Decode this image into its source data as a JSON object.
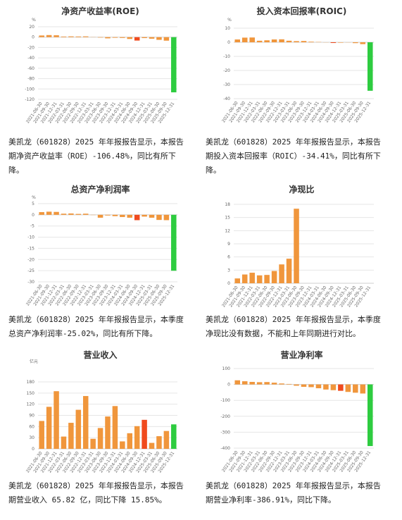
{
  "colors": {
    "orange": "#f0963c",
    "red": "#f04a1e",
    "green": "#2ecc40"
  },
  "captions": [
    "美凯龙（601828）2025 年年报报告显示，本报告\n期净资产收益率（ROE）-106.48%，同比有所下\n降。",
    "美凯龙（601828）2025 年年报报告显示，本报告\n期投入资本回报率（ROIC）-34.41%，同比有所下\n降。",
    "美凯龙（601828）2025 年年报报告显示，本季度\n总资产净利润率-25.02%，同比有所下降。",
    "美凯龙（601828）2025 年年报报告显示，本季度\n净现比没有数据，不能和上年同期进行对比。",
    "美凯龙（601828）2025 年年报报告显示，本报告\n期营业收入 65.82 亿，同比下降 15.85%。",
    "美凯龙（601828）2025 年年报报告显示，本报告\n期营业净利率-386.91%，同比下降。"
  ],
  "chart_data": [
    {
      "type": "bar",
      "title": "净资产收益率(ROE)",
      "unit": "%",
      "ylim": [
        -120,
        20
      ],
      "yticks": [
        20,
        0,
        -20,
        -40,
        -60,
        -80,
        -100,
        -120
      ],
      "categories": [
        "2021-06-30",
        "2021-09-30",
        "2021-12-31",
        "2022-03-31",
        "2022-06-30",
        "2022-09-30",
        "2022-12-31",
        "2023-03-31",
        "2023-06-30",
        "2023-09-30",
        "2023-12-31",
        "2024-03-31",
        "2024-06-30",
        "2024-09-30",
        "2024-12-31",
        "2025-03-31",
        "2025-06-30",
        "2025-09-30",
        "2025-12-31"
      ],
      "values": [
        3.2,
        4.0,
        3.6,
        1.2,
        1.5,
        1.3,
        1.5,
        0.3,
        -0.8,
        -2.3,
        -1.2,
        -1.5,
        -3.5,
        -6.6,
        -1.8,
        -3.0,
        -5.2,
        -6.8,
        -106.48
      ],
      "colors": [
        "orange",
        "orange",
        "orange",
        "orange",
        "orange",
        "orange",
        "orange",
        "orange",
        "orange",
        "orange",
        "orange",
        "orange",
        "orange",
        "red",
        "orange",
        "orange",
        "orange",
        "orange",
        "green"
      ]
    },
    {
      "type": "bar",
      "title": "投入资本回报率(ROIC)",
      "unit": "%",
      "ylim": [
        -40,
        10
      ],
      "yticks": [
        10,
        0,
        -10,
        -20,
        -30,
        -40
      ],
      "categories": [
        "2021-06-30",
        "2021-09-30",
        "2021-12-31",
        "2022-03-31",
        "2022-06-30",
        "2022-09-30",
        "2022-12-31",
        "2023-03-31",
        "2023-06-30",
        "2023-09-30",
        "2023-12-31",
        "2024-03-31",
        "2024-06-30",
        "2024-09-30",
        "2024-12-31",
        "2025-03-31",
        "2025-06-30",
        "2025-09-30",
        "2025-12-31"
      ],
      "values": [
        2.0,
        3.3,
        3.4,
        1.1,
        1.4,
        2.0,
        2.1,
        1.1,
        0.8,
        0.9,
        0.4,
        0.2,
        -0.1,
        -0.5,
        -0.3,
        -0.1,
        -0.6,
        -1.3,
        -34.41
      ],
      "colors": [
        "orange",
        "orange",
        "orange",
        "orange",
        "orange",
        "orange",
        "orange",
        "orange",
        "orange",
        "orange",
        "orange",
        "orange",
        "orange",
        "red",
        "orange",
        "orange",
        "orange",
        "orange",
        "green"
      ]
    },
    {
      "type": "bar",
      "title": "总资产净利润率",
      "unit": "%",
      "ylim": [
        -30,
        5
      ],
      "yticks": [
        5,
        0,
        -5,
        -10,
        -15,
        -20,
        -25,
        -30
      ],
      "categories": [
        "2021-06-30",
        "2021-09-30",
        "2021-12-31",
        "2022-03-31",
        "2022-06-30",
        "2022-09-30",
        "2022-12-31",
        "2023-03-31",
        "2023-06-30",
        "2023-09-30",
        "2023-12-31",
        "2024-03-31",
        "2024-06-30",
        "2024-09-30",
        "2024-12-31",
        "2025-03-31",
        "2025-06-30",
        "2025-09-30",
        "2025-12-31"
      ],
      "values": [
        1.2,
        1.4,
        1.3,
        0.5,
        0.6,
        0.4,
        0.5,
        -0.1,
        -1.3,
        -0.3,
        -0.6,
        -1.0,
        -1.3,
        -2.4,
        -0.8,
        -1.3,
        -2.3,
        -2.4,
        -25.02
      ],
      "colors": [
        "orange",
        "orange",
        "orange",
        "orange",
        "orange",
        "orange",
        "orange",
        "orange",
        "orange",
        "orange",
        "orange",
        "orange",
        "orange",
        "red",
        "orange",
        "orange",
        "orange",
        "orange",
        "green"
      ]
    },
    {
      "type": "bar",
      "title": "净现比",
      "unit": "",
      "ylim": [
        0,
        18
      ],
      "yticks": [
        18,
        15,
        12,
        9,
        6,
        3,
        0
      ],
      "categories": [
        "2021-06-30",
        "2021-09-30",
        "2021-12-31",
        "2022-03-31",
        "2022-06-30",
        "2022-09-30",
        "2022-12-31",
        "2023-03-31",
        "2023-06-30",
        "2023-09-30",
        "2023-12-31",
        "2024-03-31",
        "2024-06-30",
        "2024-09-30",
        "2024-12-31",
        "2025-03-31",
        "2025-06-30",
        "2025-09-30",
        "2025-12-31"
      ],
      "values": [
        1.1,
        2.0,
        2.4,
        1.8,
        1.9,
        2.8,
        4.3,
        5.6,
        17.0,
        0,
        0,
        0,
        0,
        0,
        0,
        0,
        0,
        0,
        0
      ],
      "colors": [
        "orange",
        "orange",
        "orange",
        "orange",
        "orange",
        "orange",
        "orange",
        "orange",
        "orange",
        "orange",
        "orange",
        "orange",
        "orange",
        "orange",
        "orange",
        "orange",
        "orange",
        "orange",
        "orange"
      ]
    },
    {
      "type": "bar",
      "title": "营业收入",
      "unit": "亿元",
      "ylim": [
        0,
        180
      ],
      "yticks": [
        180,
        150,
        120,
        90,
        60,
        30,
        0
      ],
      "categories": [
        "2021-06-30",
        "2021-09-30",
        "2021-12-31",
        "2022-03-31",
        "2022-06-30",
        "2022-09-30",
        "2022-12-31",
        "2023-03-31",
        "2023-06-30",
        "2023-09-30",
        "2023-12-31",
        "2024-03-31",
        "2024-06-30",
        "2024-09-30",
        "2024-12-31",
        "2025-03-31",
        "2025-06-30",
        "2025-09-30",
        "2025-12-31"
      ],
      "values": [
        75,
        113,
        155,
        33,
        70,
        105,
        142,
        27,
        56,
        87,
        115,
        20,
        42,
        61,
        78,
        16,
        34,
        48,
        65.82
      ],
      "colors": [
        "orange",
        "orange",
        "orange",
        "orange",
        "orange",
        "orange",
        "orange",
        "orange",
        "orange",
        "orange",
        "orange",
        "orange",
        "orange",
        "orange",
        "red",
        "orange",
        "orange",
        "orange",
        "green"
      ]
    },
    {
      "type": "bar",
      "title": "营业净利率",
      "unit": "%",
      "ylim": [
        -400,
        100
      ],
      "yticks": [
        100,
        0,
        -100,
        -200,
        -300,
        -400
      ],
      "categories": [
        "2021-06-30",
        "2021-09-30",
        "2021-12-31",
        "2022-03-31",
        "2022-06-30",
        "2022-09-30",
        "2022-12-31",
        "2023-03-31",
        "2023-06-30",
        "2023-09-30",
        "2023-12-31",
        "2024-03-31",
        "2024-06-30",
        "2024-09-30",
        "2024-12-31",
        "2025-03-31",
        "2025-06-30",
        "2025-09-30",
        "2025-12-31"
      ],
      "values": [
        26,
        20,
        16,
        14,
        15,
        11,
        6,
        3,
        -8,
        -15,
        -17,
        -24,
        -32,
        -36,
        -40,
        -47,
        -52,
        -57,
        -386.91
      ],
      "colors": [
        "orange",
        "orange",
        "orange",
        "orange",
        "orange",
        "orange",
        "orange",
        "orange",
        "orange",
        "orange",
        "orange",
        "orange",
        "orange",
        "orange",
        "red",
        "orange",
        "orange",
        "orange",
        "green"
      ]
    }
  ]
}
